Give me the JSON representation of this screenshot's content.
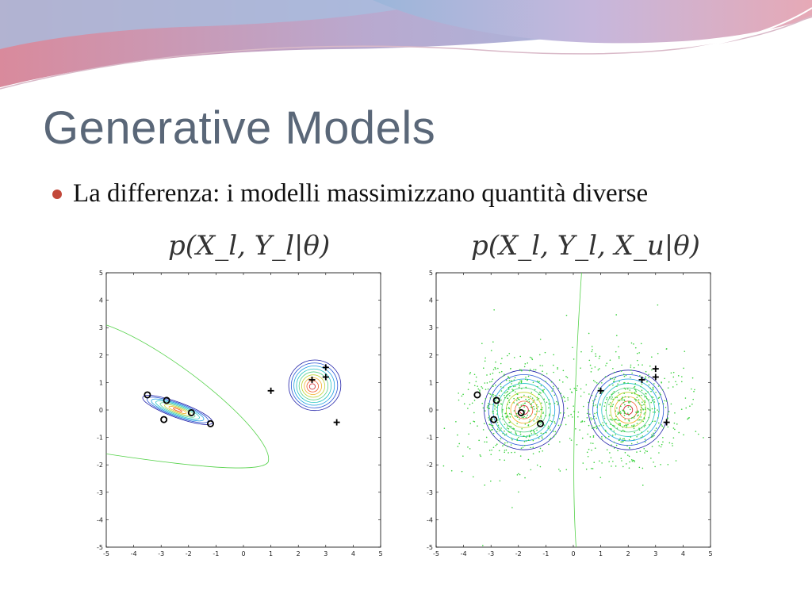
{
  "slide": {
    "title": "Generative Models",
    "bullet": "La differenza: i modelli massimizzano quantità diverse"
  },
  "colors": {
    "title": "#5a6778",
    "bullet_dot": "#c2483a",
    "banner_blue": "#9ab3d6",
    "banner_pink": "#e1a7b4"
  },
  "chart_data": [
    {
      "type": "scatter",
      "title": "p(X_l, Y_l|θ)",
      "xlim": [
        -5,
        5
      ],
      "ylim": [
        -5,
        5
      ],
      "xticks": [
        -5,
        -4,
        -3,
        -2,
        -1,
        0,
        1,
        2,
        3,
        4,
        5
      ],
      "yticks": [
        -5,
        -4,
        -3,
        -2,
        -1,
        0,
        1,
        2,
        3,
        4,
        5
      ],
      "series": [
        {
          "marker": "o",
          "points": [
            [
              -3.5,
              0.55
            ],
            [
              -2.8,
              0.35
            ],
            [
              -2.9,
              -0.35
            ],
            [
              -1.9,
              -0.1
            ],
            [
              -1.2,
              -0.5
            ]
          ]
        },
        {
          "marker": "+",
          "points": [
            [
              1.0,
              0.7
            ],
            [
              2.5,
              1.1
            ],
            [
              3.0,
              1.2
            ],
            [
              3.0,
              1.55
            ],
            [
              3.4,
              -0.45
            ]
          ]
        }
      ]
    },
    {
      "type": "scatter",
      "title": "p(X_l, Y_l, X_u|θ)",
      "xlim": [
        -5,
        5
      ],
      "ylim": [
        -5,
        5
      ],
      "xticks": [
        -5,
        -4,
        -3,
        -2,
        -1,
        0,
        1,
        2,
        3,
        4,
        5
      ],
      "yticks": [
        -5,
        -4,
        -3,
        -2,
        -1,
        0,
        1,
        2,
        3,
        4,
        5
      ],
      "series": [
        {
          "marker": "o",
          "points": [
            [
              -3.5,
              0.55
            ],
            [
              -2.8,
              0.35
            ],
            [
              -2.9,
              -0.35
            ],
            [
              -1.9,
              -0.1
            ],
            [
              -1.2,
              -0.5
            ]
          ]
        },
        {
          "marker": "+",
          "points": [
            [
              1.0,
              0.7
            ],
            [
              2.5,
              1.1
            ],
            [
              3.0,
              1.2
            ],
            [
              3.0,
              1.5
            ],
            [
              3.4,
              -0.45
            ]
          ]
        }
      ]
    }
  ]
}
